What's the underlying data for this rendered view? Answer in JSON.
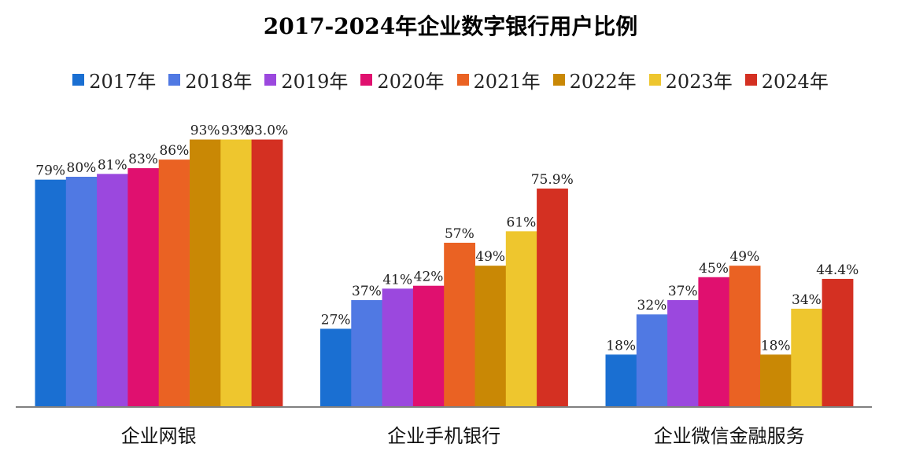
{
  "chart_data": {
    "type": "bar",
    "title": "2017-2024年企业数字银行用户比例",
    "categories": [
      "企业网银",
      "企业手机银行",
      "企业微信金融服务"
    ],
    "series": [
      {
        "name": "2017年",
        "color": "#1a6fd2",
        "values": [
          79,
          27,
          18
        ],
        "labels": [
          "79%",
          "27%",
          "18%"
        ]
      },
      {
        "name": "2018年",
        "color": "#5079e3",
        "values": [
          80,
          37,
          32
        ],
        "labels": [
          "80%",
          "37%",
          "32%"
        ]
      },
      {
        "name": "2019年",
        "color": "#9b48de",
        "values": [
          81,
          41,
          37
        ],
        "labels": [
          "81%",
          "41%",
          "37%"
        ]
      },
      {
        "name": "2020年",
        "color": "#e0106f",
        "values": [
          83,
          42,
          45
        ],
        "labels": [
          "83%",
          "42%",
          "45%"
        ]
      },
      {
        "name": "2021年",
        "color": "#ea6223",
        "values": [
          86,
          57,
          49
        ],
        "labels": [
          "86%",
          "57%",
          "49%"
        ]
      },
      {
        "name": "2022年",
        "color": "#c98805",
        "values": [
          93,
          49,
          18
        ],
        "labels": [
          "93%",
          "49%",
          "18%"
        ]
      },
      {
        "name": "2023年",
        "color": "#eec62e",
        "values": [
          93,
          61,
          34
        ],
        "labels": [
          "93%",
          "61%",
          "34%"
        ]
      },
      {
        "name": "2024年",
        "color": "#d43022",
        "values": [
          93.0,
          75.9,
          44.4
        ],
        "labels": [
          "93.0%",
          "75.9%",
          "44.4%"
        ]
      }
    ],
    "ylim": [
      0,
      100
    ],
    "grid": false,
    "legend": "top-center",
    "axis_color": "#808080"
  }
}
